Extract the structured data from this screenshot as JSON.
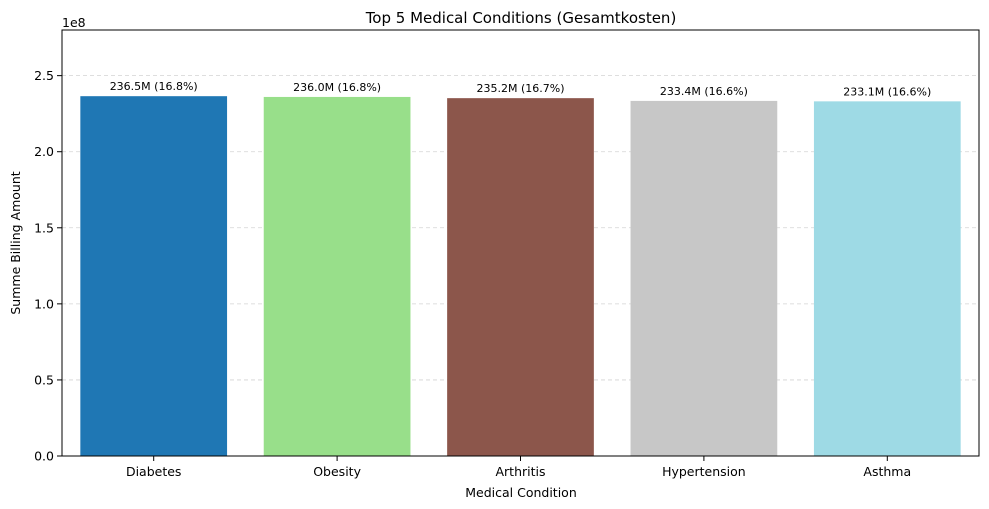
{
  "chart_data": {
    "type": "bar",
    "title": "Top 5 Medical Conditions (Gesamtkosten)",
    "xlabel": "Medical Condition",
    "ylabel": "Summe Billing Amount",
    "offset_label": "1e8",
    "categories": [
      "Diabetes",
      "Obesity",
      "Arthritis",
      "Hypertension",
      "Asthma"
    ],
    "values": [
      236.5,
      236.0,
      235.2,
      233.4,
      233.1
    ],
    "value_unit_scale": 1000000.0,
    "data_labels": [
      "236.5M (16.8%)",
      "236.0M (16.8%)",
      "235.2M (16.7%)",
      "233.4M (16.6%)",
      "233.1M (16.6%)"
    ],
    "colors": [
      "#1f77b4",
      "#98df8a",
      "#8c564b",
      "#c7c7c7",
      "#9edae5"
    ],
    "yticks": [
      0.0,
      0.5,
      1.0,
      1.5,
      2.0,
      2.5
    ],
    "ytick_labels": [
      "0.0",
      "0.5",
      "1.0",
      "1.5",
      "2.0",
      "2.5"
    ],
    "ylim": [
      0,
      2.8
    ],
    "grid": "y-dashed",
    "legend": "none"
  }
}
